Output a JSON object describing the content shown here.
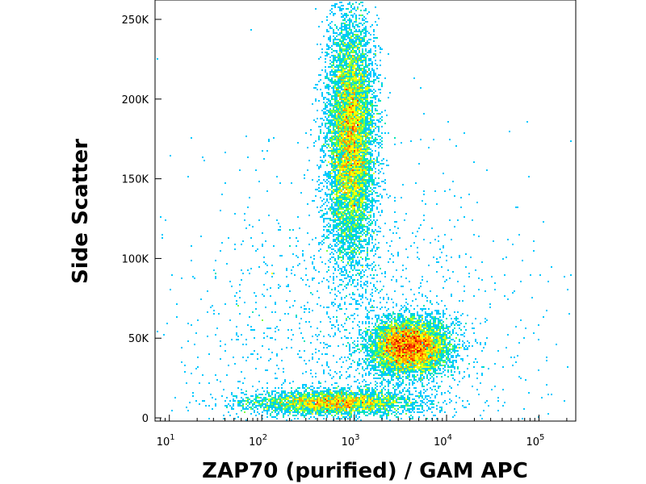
{
  "chart_data": {
    "type": "scatter",
    "subtype": "flow-cytometry-density-dot-plot",
    "title": "",
    "xlabel": "ZAP70 (purified) / GAM APC",
    "ylabel": "Side Scatter",
    "x_scale": "log",
    "y_scale": "linear",
    "xlim": [
      7,
      250000
    ],
    "ylim": [
      -2000,
      262144
    ],
    "x_ticks": [
      {
        "value": 10,
        "base": "10",
        "exp": "1"
      },
      {
        "value": 100,
        "base": "10",
        "exp": "2"
      },
      {
        "value": 1000,
        "base": "10",
        "exp": "3"
      },
      {
        "value": 10000,
        "base": "10",
        "exp": "4"
      },
      {
        "value": 100000,
        "base": "10",
        "exp": "5"
      }
    ],
    "y_ticks": [
      {
        "value": 0,
        "label": "0"
      },
      {
        "value": 50000,
        "label": "50K"
      },
      {
        "value": 100000,
        "label": "100K"
      },
      {
        "value": 150000,
        "label": "150K"
      },
      {
        "value": 200000,
        "label": "200K"
      },
      {
        "value": 250000,
        "label": "250K"
      }
    ],
    "grid": false,
    "colormap": [
      "#0000c8",
      "#0064ff",
      "#00c8ff",
      "#00e6b4",
      "#7aff3c",
      "#ffff00",
      "#ffa000",
      "#ff3c00",
      "#c80000"
    ],
    "populations": [
      {
        "x_center": 900,
        "y_center": 175000,
        "x_spread_log": 0.13,
        "y_spread": 38000,
        "points": 9000
      },
      {
        "x_center": 3800,
        "y_center": 45000,
        "x_spread_log": 0.22,
        "y_spread": 9000,
        "points": 6500
      },
      {
        "x_center": 600,
        "y_center": 10000,
        "x_spread_log": 0.45,
        "y_spread": 4000,
        "points": 3500
      },
      {
        "x_center": 1000,
        "y_center": 40000,
        "x_spread_log": 0.9,
        "y_spread": 60000,
        "points": 2000
      }
    ]
  }
}
